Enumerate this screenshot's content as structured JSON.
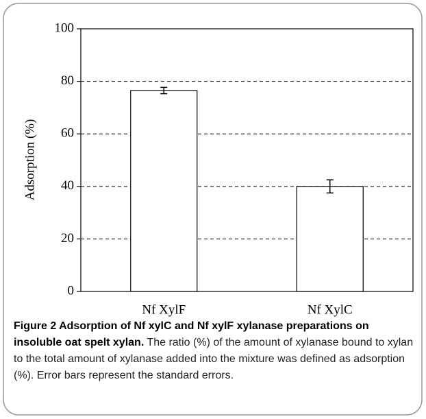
{
  "chart_data": {
    "type": "bar",
    "ylabel": "Adsorption (%)",
    "categories": [
      "Nf XylF",
      "Nf XylC"
    ],
    "values": [
      76.5,
      40
    ],
    "errors": [
      1.2,
      2.5
    ],
    "color": "#ffffff",
    "edgecolor": "#000000",
    "ylim": [
      0,
      100
    ],
    "yticks": [
      0,
      20,
      40,
      60,
      80,
      100
    ],
    "grid": true
  },
  "caption": {
    "title": "Figure 2 Adsorption of Nf xylC and Nf xylF xylanase preparations on insoluble oat spelt xylan.",
    "text": "The ratio (%) of the amount of xylanase bound to xylan to the total amount of xylanase added into the mixture was defined as adsorption (%). Error bars represent the standard errors."
  }
}
